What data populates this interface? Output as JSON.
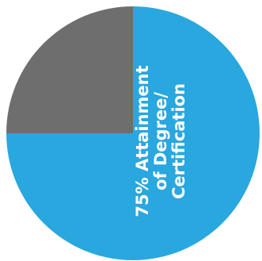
{
  "chart_data": {
    "type": "pie",
    "slices": [
      {
        "label": "75% Attainment of Degree/ Certification",
        "value": 75,
        "color": "#29a7df"
      },
      {
        "label": "",
        "value": 25,
        "color": "#6e6e6e"
      }
    ],
    "label_lines": [
      "75% Attainment",
      "of Degree/",
      "Certification"
    ],
    "start_angle_deg": 0,
    "direction": "clockwise-from-top",
    "legend": "none",
    "background": "#ffffff"
  }
}
